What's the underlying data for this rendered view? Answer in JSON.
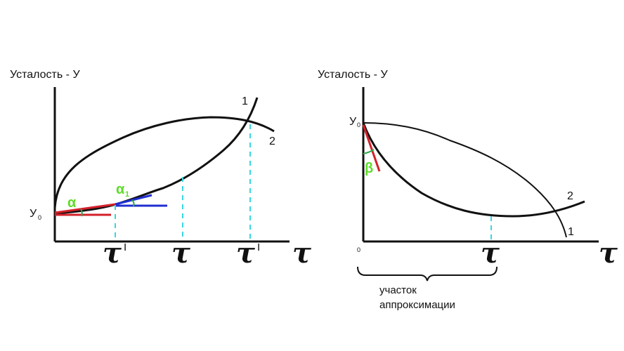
{
  "left": {
    "ylabel": "Усталость - У",
    "y0": "У",
    "y0_sub": "0",
    "angle": "α",
    "angle1": "α",
    "angle1_sub": "1",
    "curve1": "1",
    "curve2": "2",
    "tau": "τ",
    "tick": "I"
  },
  "right": {
    "ylabel": "Усталость - У",
    "y0": "У",
    "y0_sub": "0",
    "origin": "0",
    "angle": "β",
    "curve1": "1",
    "curve2": "2",
    "tau": "τ",
    "brace_label_line1": "участок",
    "brace_label_line2": "аппроксимации"
  },
  "colors": {
    "tangent_red": "#d4202a",
    "tangent_blue": "#1f2fd0",
    "angle_label_green": "#5fdc2a",
    "dashed_cyan": "#38d6e0"
  }
}
